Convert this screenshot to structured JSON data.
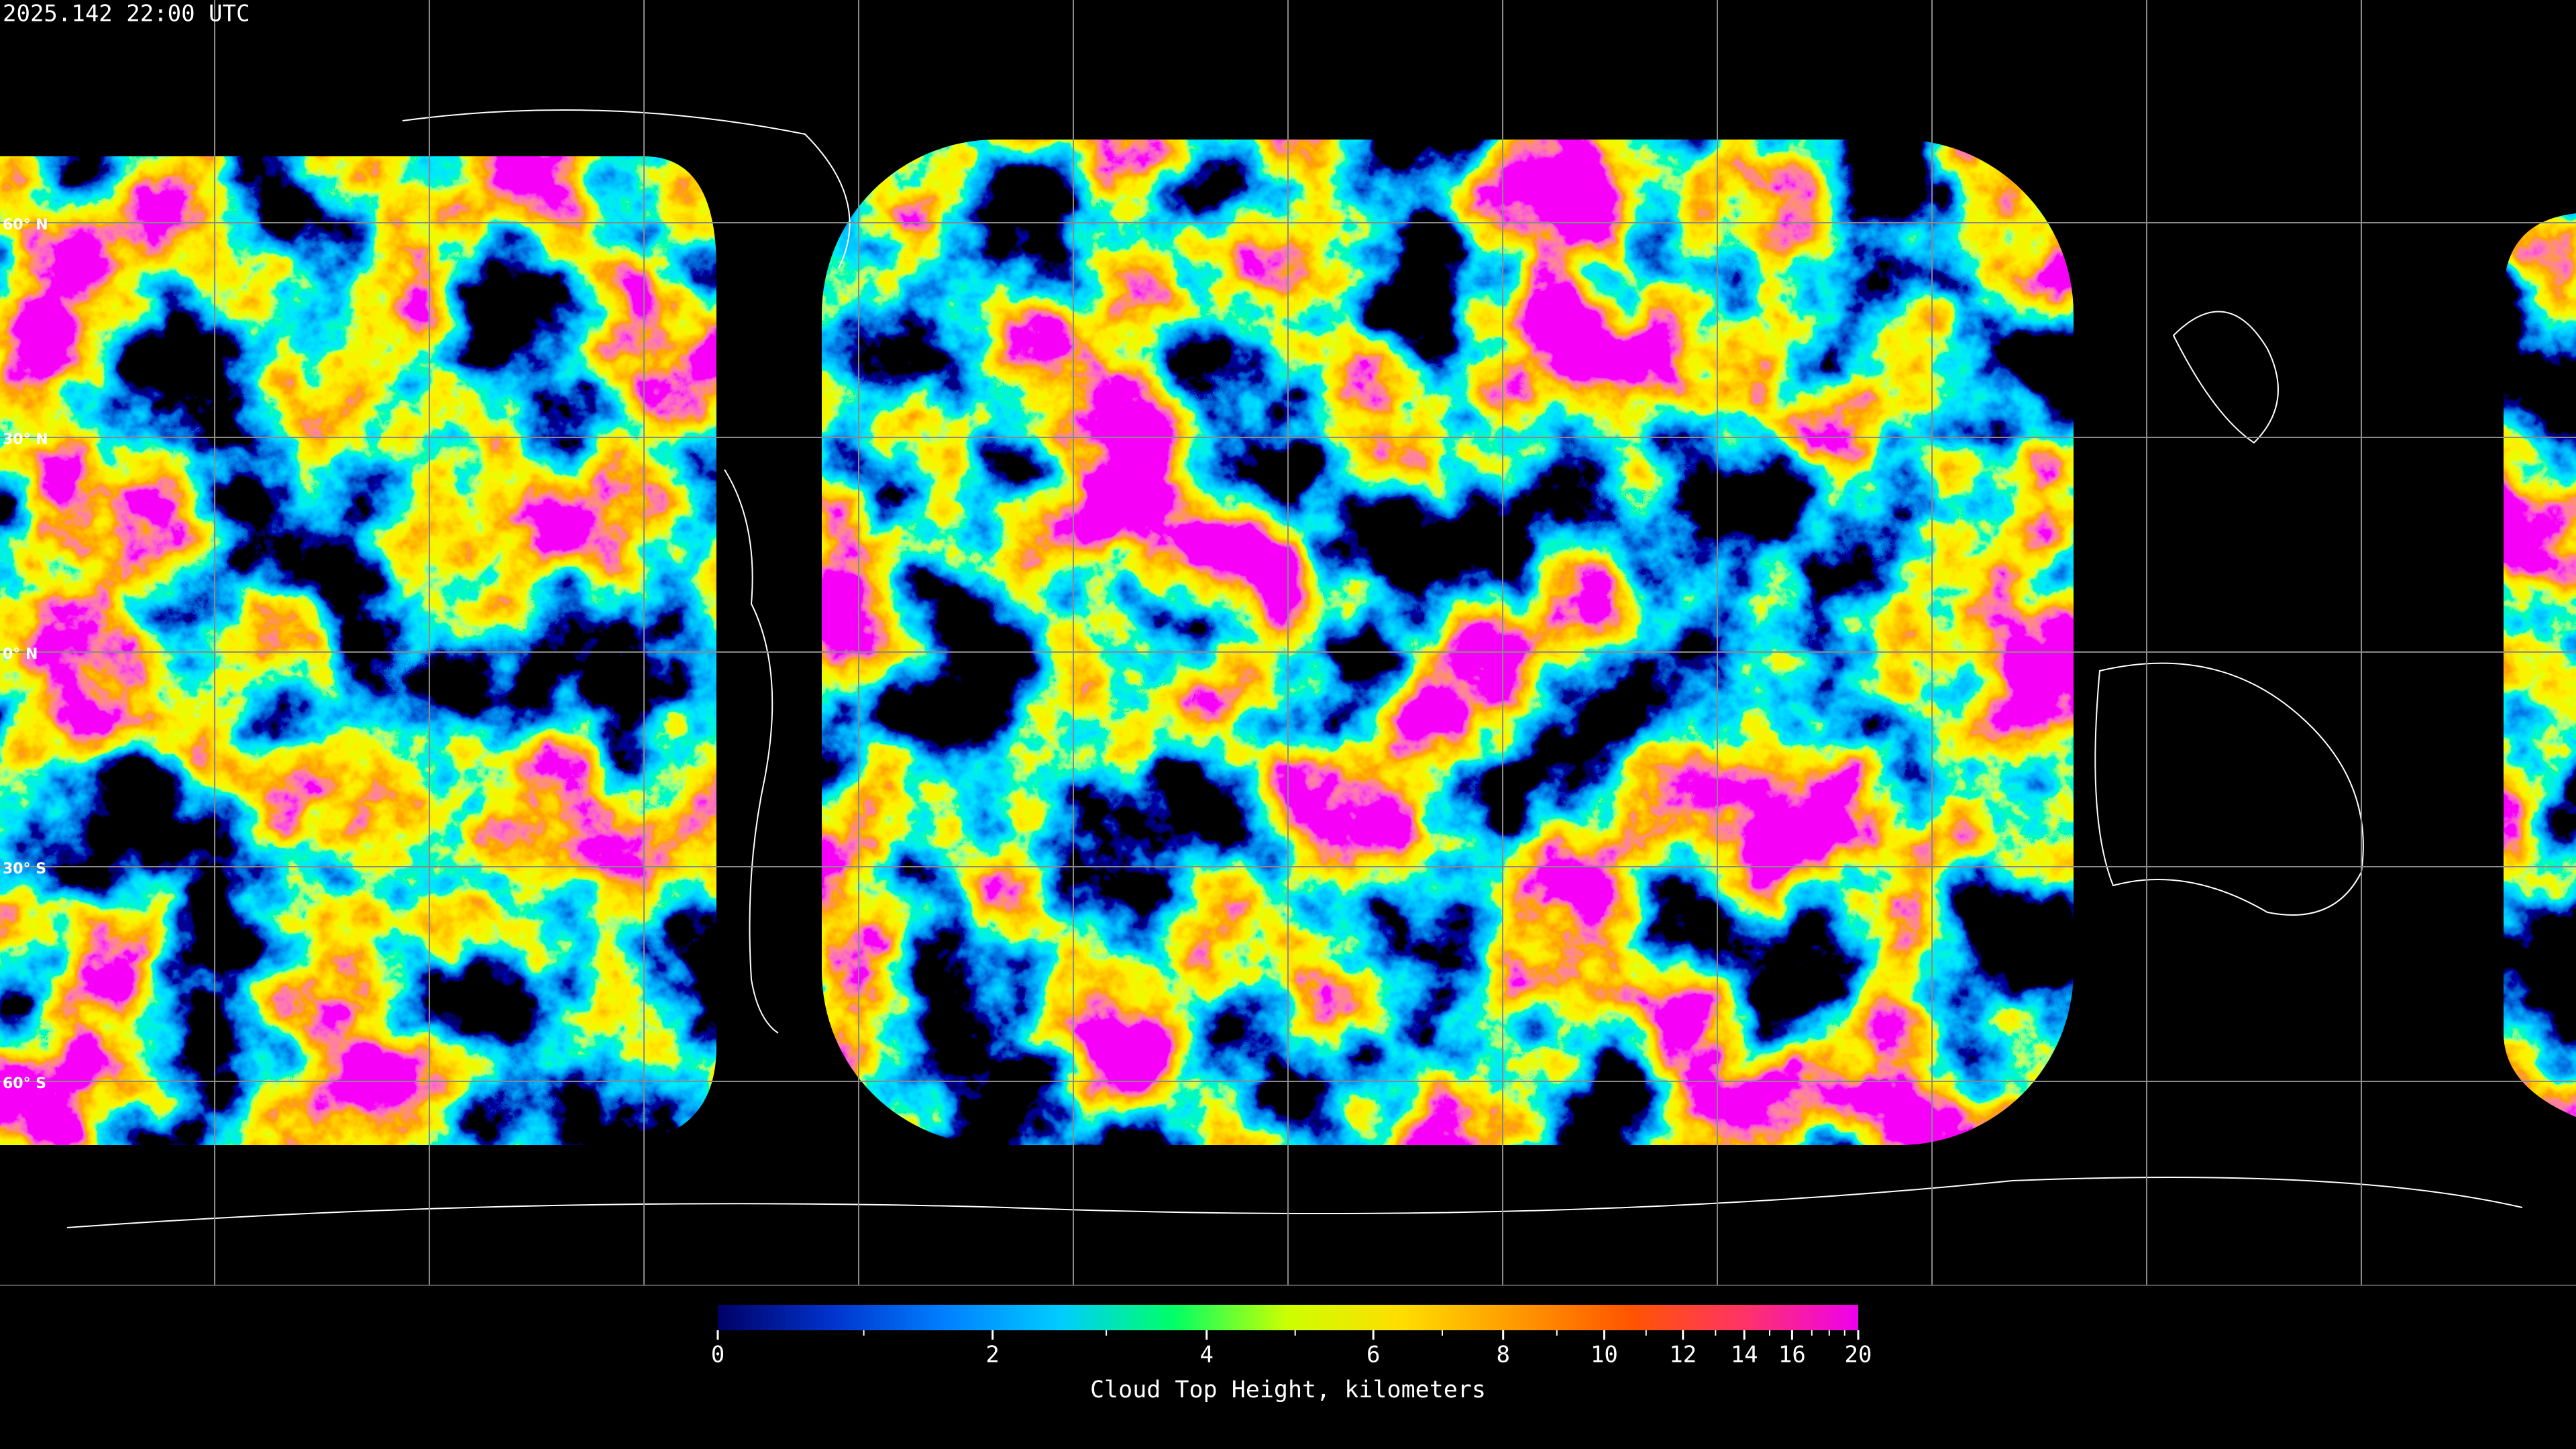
{
  "timestamp": "2025.142 22:00 UTC",
  "latitude_labels": [
    "60° N",
    "30° N",
    "0° N",
    "30° S",
    "60° S"
  ],
  "chart_data": {
    "type": "colorbar",
    "title": "Cloud Top Height, kilometers",
    "xlim": [
      0,
      20
    ],
    "xticks": [
      0,
      2,
      4,
      6,
      8,
      10,
      12,
      14,
      16,
      20
    ],
    "xminorticks": [
      1,
      3,
      5,
      7,
      9,
      11,
      13,
      15,
      17,
      18,
      19
    ],
    "scale": "pressure",
    "colors": [
      "#000066",
      "#0033cc",
      "#0080ff",
      "#00ccff",
      "#00ff66",
      "#ccff00",
      "#ffdd00",
      "#ff9900",
      "#ff5500",
      "#ff3366",
      "#ee00ee"
    ]
  }
}
